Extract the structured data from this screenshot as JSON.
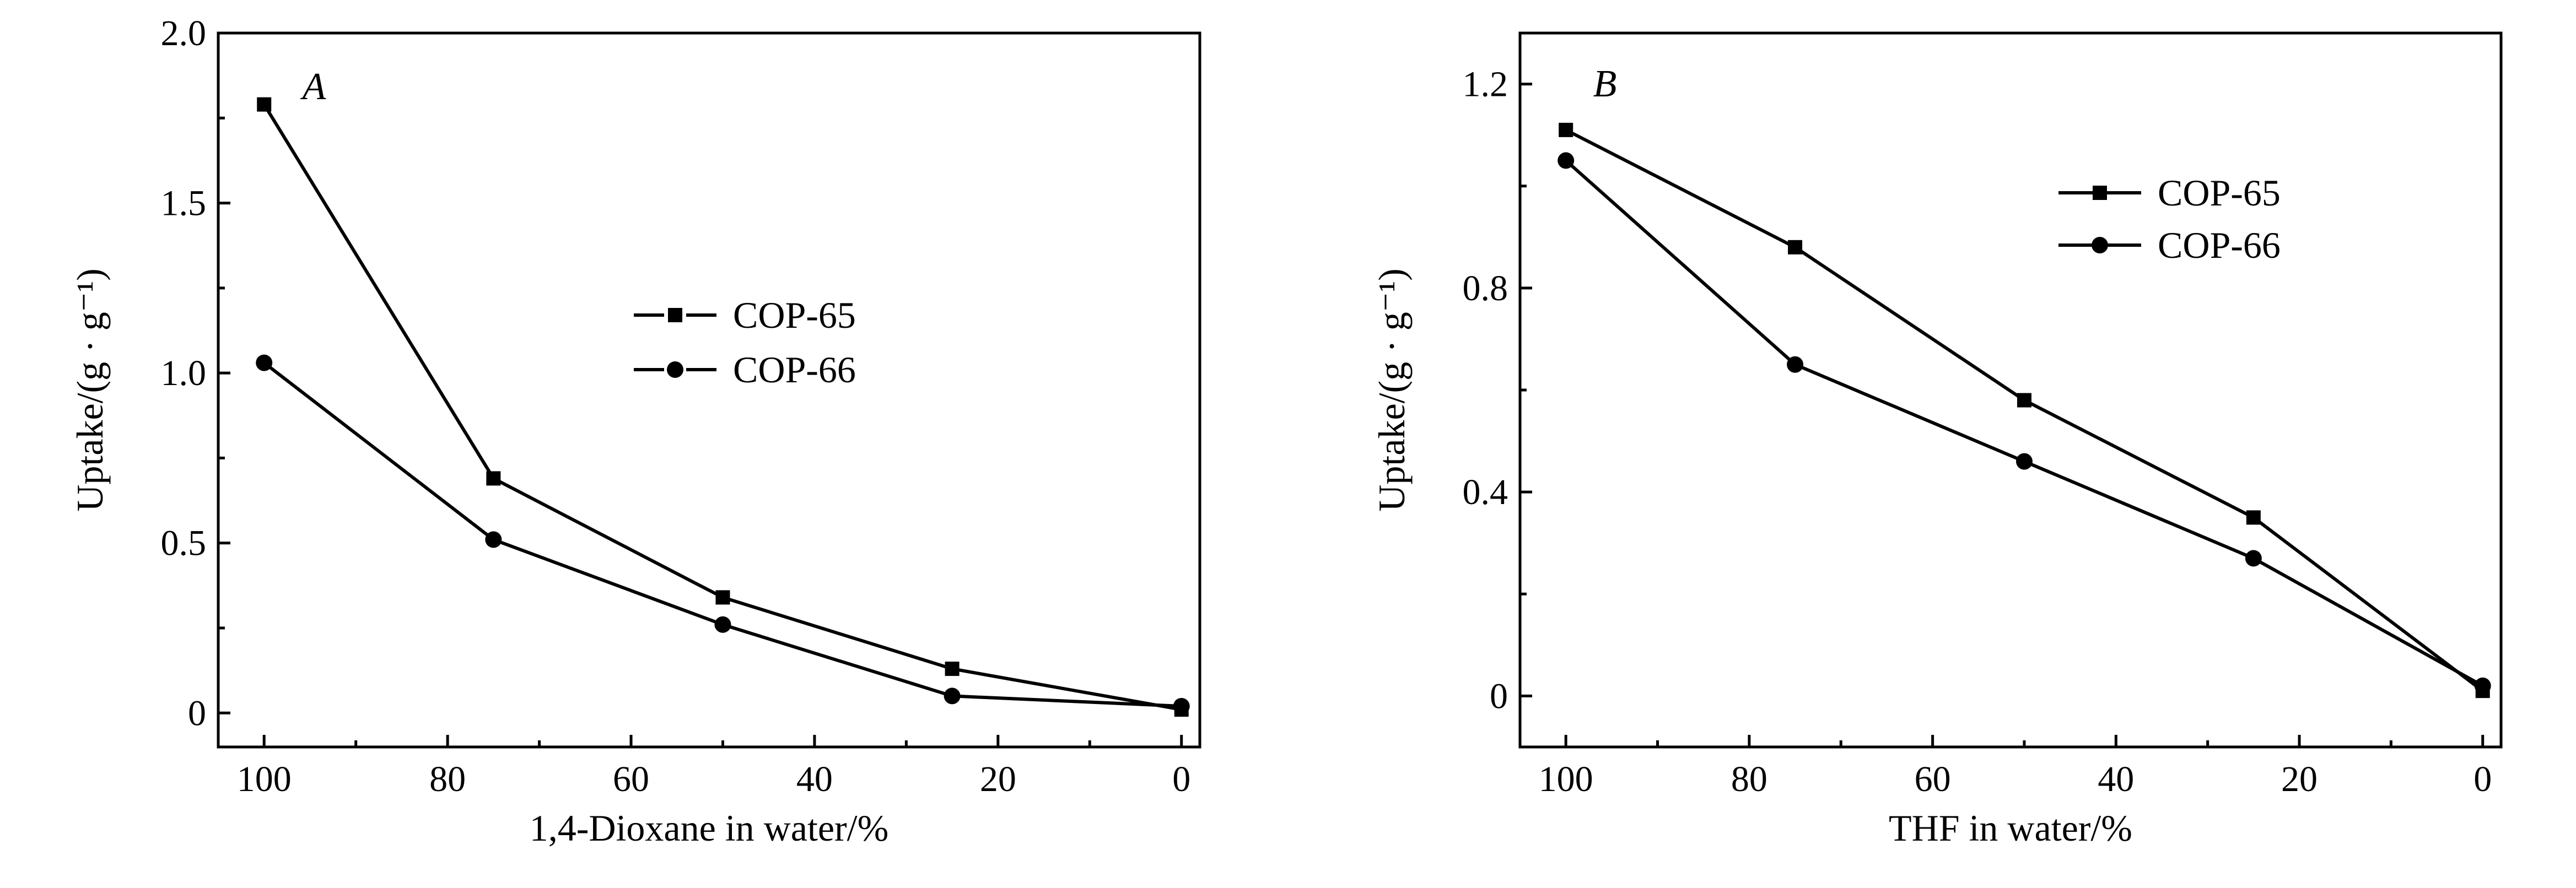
{
  "chart_data": [
    {
      "type": "line",
      "panel_label": "A",
      "xlabel": "1,4-Dioxane in water/%",
      "ylabel": "Uptake/(g · g⁻¹)",
      "xlim": [
        105,
        -2
      ],
      "ylim": [
        -0.1,
        2.0
      ],
      "x_ticks": [
        100,
        80,
        60,
        40,
        20,
        0
      ],
      "x_tick_labels": [
        "100",
        "80",
        "60",
        "40",
        "20",
        "0"
      ],
      "y_ticks": [
        0,
        0.5,
        1.0,
        1.5,
        2.0
      ],
      "y_tick_labels": [
        "0",
        "0.5",
        "1.0",
        "1.5",
        "2.0"
      ],
      "legend_position": "center-right",
      "grid": false,
      "series": [
        {
          "name": "COP-65",
          "marker": "square",
          "x": [
            100,
            75,
            50,
            25,
            0
          ],
          "y": [
            1.79,
            0.69,
            0.34,
            0.13,
            0.01
          ]
        },
        {
          "name": "COP-66",
          "marker": "circle",
          "x": [
            100,
            75,
            50,
            25,
            0
          ],
          "y": [
            1.03,
            0.51,
            0.26,
            0.05,
            0.02
          ]
        }
      ]
    },
    {
      "type": "line",
      "panel_label": "B",
      "xlabel": "THF in water/%",
      "ylabel": "Uptake/(g · g⁻¹)",
      "xlim": [
        105,
        -2
      ],
      "ylim": [
        -0.1,
        1.3
      ],
      "x_ticks": [
        100,
        80,
        60,
        40,
        20,
        0
      ],
      "x_tick_labels": [
        "100",
        "80",
        "60",
        "40",
        "20",
        "0"
      ],
      "y_ticks": [
        0,
        0.4,
        0.8,
        1.2
      ],
      "y_tick_labels": [
        "0",
        "0.4",
        "0.8",
        "1.2"
      ],
      "legend_position": "top-right",
      "grid": false,
      "series": [
        {
          "name": "COP-65",
          "marker": "square",
          "x": [
            100,
            75,
            50,
            25,
            0
          ],
          "y": [
            1.11,
            0.88,
            0.58,
            0.35,
            0.01
          ]
        },
        {
          "name": "COP-66",
          "marker": "circle",
          "x": [
            100,
            75,
            50,
            25,
            0
          ],
          "y": [
            1.05,
            0.65,
            0.46,
            0.27,
            0.02
          ]
        }
      ]
    }
  ]
}
